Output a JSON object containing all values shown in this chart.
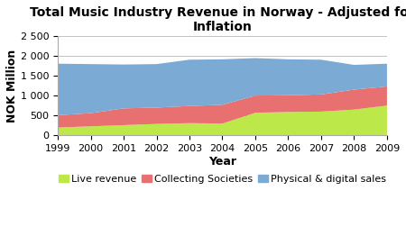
{
  "years": [
    1999,
    2000,
    2001,
    2002,
    2003,
    2004,
    2005,
    2006,
    2007,
    2008,
    2009
  ],
  "live_revenue": [
    200,
    230,
    260,
    290,
    310,
    300,
    570,
    590,
    600,
    650,
    750
  ],
  "collecting_societies": [
    310,
    330,
    420,
    410,
    430,
    470,
    430,
    420,
    430,
    500,
    480
  ],
  "physical_digital_sales": [
    1290,
    1230,
    1100,
    1090,
    1160,
    1140,
    940,
    900,
    870,
    620,
    570
  ],
  "title_line1": "Total Music Industry Revenue in Norway - Adjusted for",
  "title_line2": "Inflation",
  "xlabel": "Year",
  "ylabel": "NOK Million",
  "ylim": [
    0,
    2500
  ],
  "yticks": [
    0,
    500,
    1000,
    1500,
    2000,
    2500
  ],
  "ytick_labels": [
    "0",
    "500",
    "1 000",
    "1 500",
    "2 000",
    "2 500"
  ],
  "color_live": "#bde84a",
  "color_collecting": "#e87070",
  "color_physical": "#7baad4",
  "legend_labels": [
    "Live revenue",
    "Collecting Societies",
    "Physical & digital sales"
  ],
  "title_fontsize": 10,
  "axis_label_fontsize": 9,
  "tick_fontsize": 8,
  "legend_fontsize": 8,
  "bg_color": "#ffffff"
}
